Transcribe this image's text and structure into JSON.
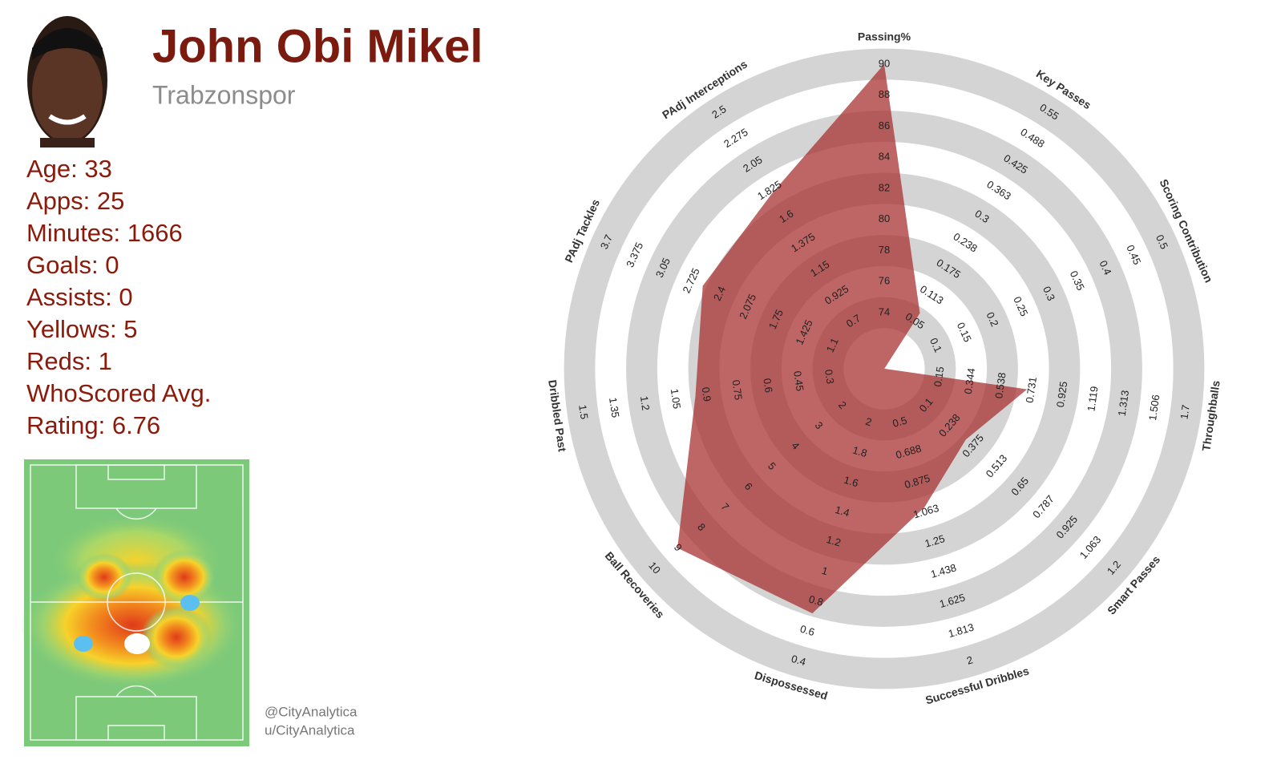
{
  "player": {
    "name": "John Obi Mikel",
    "club": "Trabzonspor",
    "stats": [
      "Age: 33",
      "Apps: 25",
      "Minutes: 1666",
      "Goals: 0",
      "Assists: 0",
      "Yellows: 5",
      "Reds: 1",
      "WhoScored Avg.",
      "Rating: 6.76"
    ]
  },
  "credits": [
    "@CityAnalytica",
    "u/CityAnalytica"
  ],
  "chart_data": {
    "type": "radar",
    "categories": [
      "Passing%",
      "Key Passes",
      "Scoring Contribution",
      "Throughballs",
      "Smart Passes",
      "Successful Dribbles",
      "Dispossessed",
      "Ball Recoveries",
      "Dribbled Past",
      "PAdj Tackles",
      "PAdj Interceptions"
    ],
    "axis_ticks": [
      [
        74,
        76,
        78,
        80,
        82,
        84,
        86,
        88,
        90
      ],
      [
        0.05,
        0.113,
        0.175,
        0.238,
        0.3,
        0.363,
        0.425,
        0.488,
        0.55
      ],
      [
        0.1,
        0.15,
        0.2,
        0.25,
        0.3,
        0.35,
        0.4,
        0.45,
        0.5
      ],
      [
        0.15,
        0.344,
        0.538,
        0.731,
        0.925,
        1.119,
        1.313,
        1.506,
        1.7
      ],
      [
        0.1,
        0.238,
        0.375,
        0.513,
        0.65,
        0.787,
        0.925,
        1.063,
        1.2
      ],
      [
        0.5,
        0.688,
        0.875,
        1.063,
        1.25,
        1.438,
        1.625,
        1.813,
        2
      ],
      [
        2,
        1.8,
        1.6,
        1.4,
        1.2,
        1,
        0.8,
        0.6,
        0.4
      ],
      [
        2,
        3,
        4,
        5,
        6,
        7,
        8,
        9,
        10
      ],
      [
        0.3,
        0.45,
        0.6,
        0.75,
        0.9,
        1.05,
        1.2,
        1.35,
        1.5
      ],
      [
        1.1,
        1.425,
        1.75,
        2.075,
        2.4,
        2.725,
        3.05,
        3.375,
        3.7
      ],
      [
        0.7,
        0.925,
        1.15,
        1.375,
        1.6,
        1.825,
        2.05,
        2.275,
        2.5
      ]
    ],
    "series": [
      {
        "color": "#a83232",
        "values": [
          90,
          0.07,
          0.01,
          0.7,
          0.33,
          1.03,
          0.72,
          9,
          0.95,
          2.6,
          1.8
        ]
      }
    ],
    "ring_color": "#d4d4d4"
  }
}
